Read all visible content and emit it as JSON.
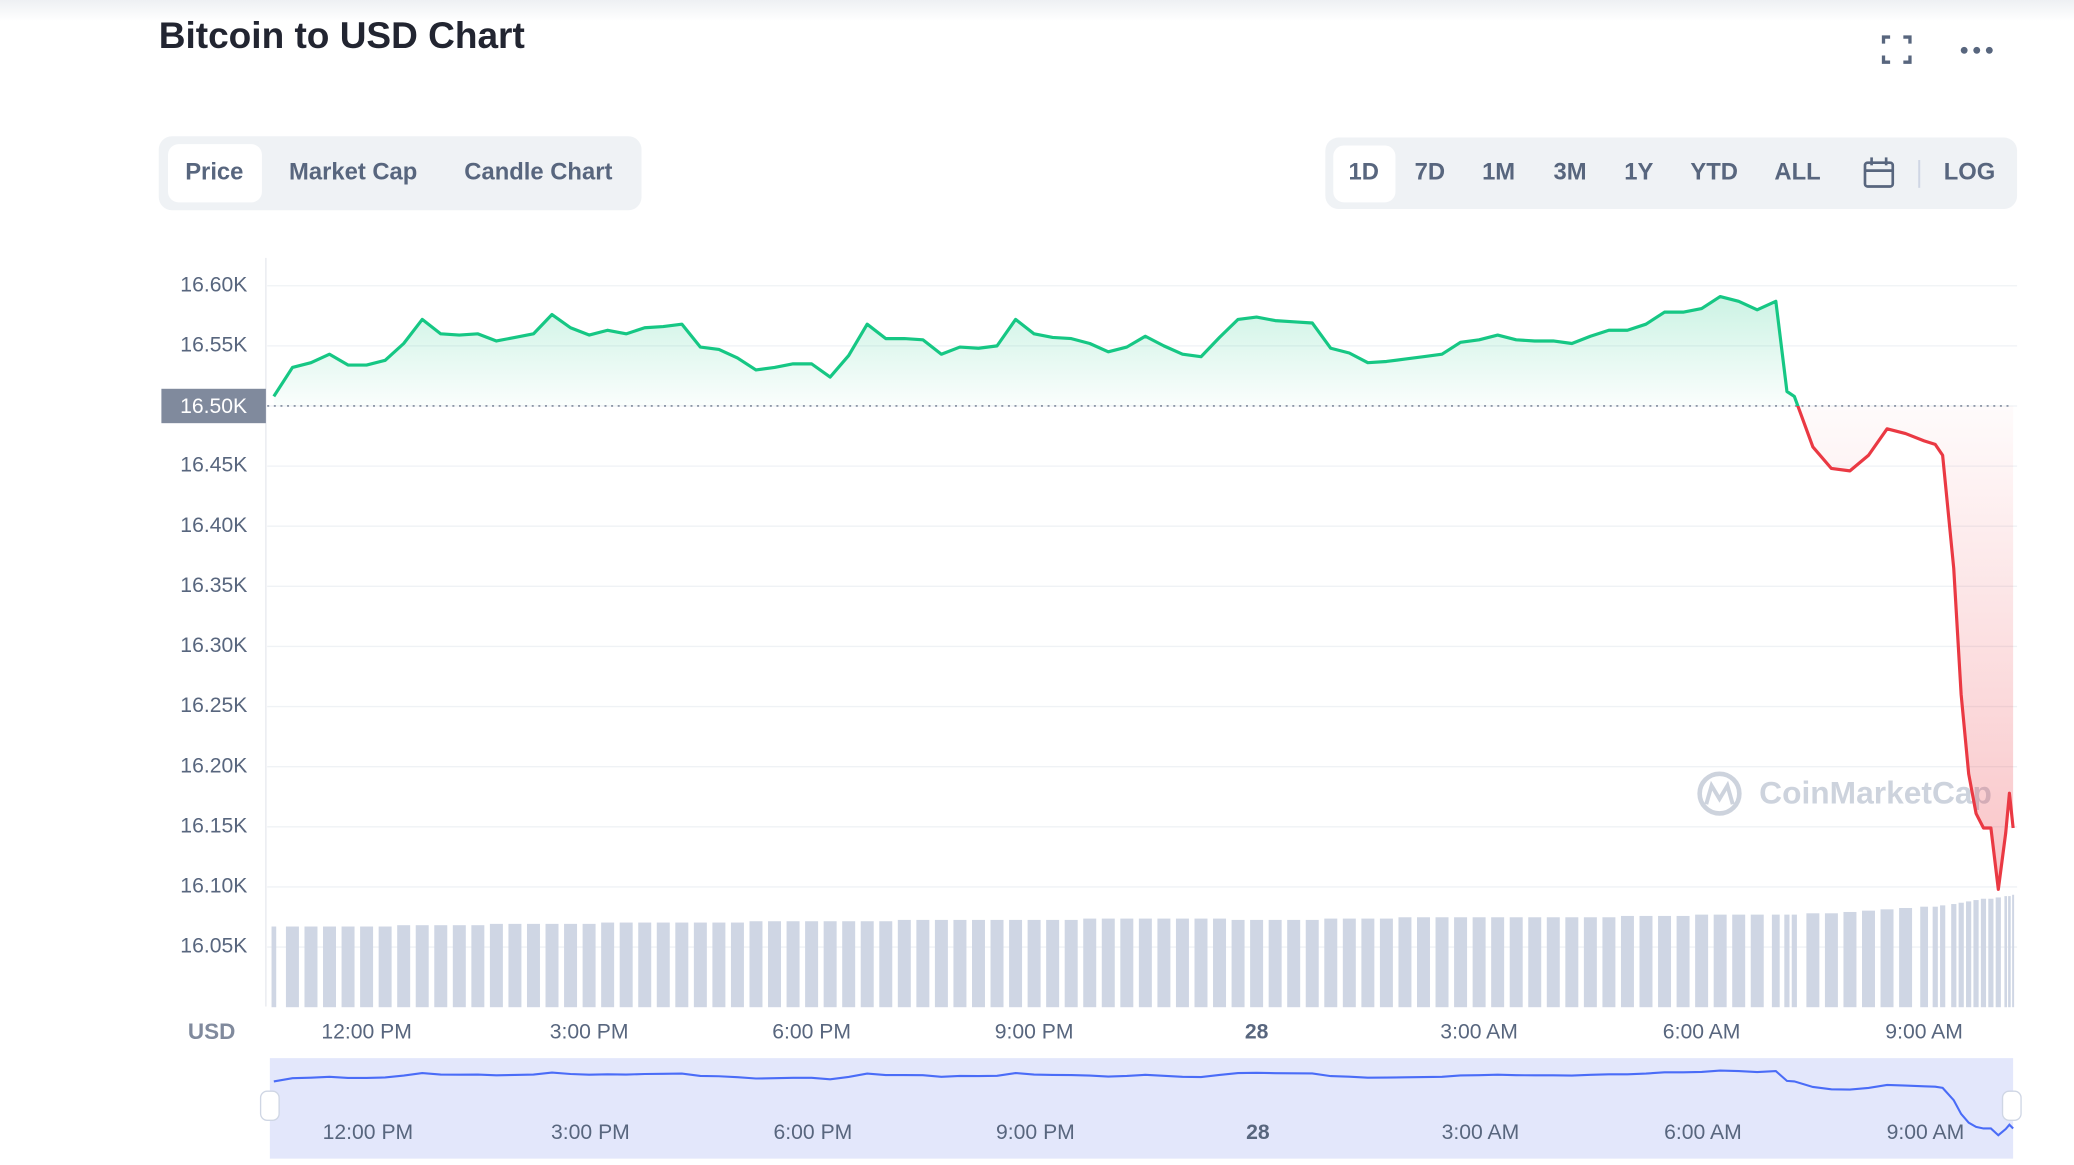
{
  "chart_data": {
    "type": "line",
    "title": "Bitcoin to USD Chart",
    "y_label": "USD",
    "tabs": [
      "Price",
      "Market Cap",
      "Candle Chart"
    ],
    "ranges": [
      "1D",
      "7D",
      "1M",
      "3M",
      "1Y",
      "YTD",
      "ALL"
    ],
    "log_button": "LOG",
    "watermark": "CoinMarketCap",
    "log_scale": false,
    "grid": true,
    "up_color": "#16c784",
    "down_color": "#ea3943",
    "volume_color": "#cfd6e4",
    "navigator_color": "#4a6cf7",
    "reference": {
      "value": 16500,
      "label": "16.50K"
    },
    "x": [
      10.75,
      11,
      11.25,
      11.5,
      11.75,
      12,
      12.25,
      12.5,
      12.75,
      13,
      13.25,
      13.5,
      13.75,
      14,
      14.25,
      14.5,
      14.75,
      15,
      15.25,
      15.5,
      15.75,
      16,
      16.25,
      16.5,
      16.75,
      17,
      17.25,
      17.5,
      17.75,
      18,
      18.25,
      18.5,
      18.75,
      19,
      19.25,
      19.5,
      19.75,
      20,
      20.25,
      20.5,
      20.75,
      21,
      21.25,
      21.5,
      21.75,
      22,
      22.25,
      22.5,
      22.75,
      23,
      23.25,
      23.5,
      23.75,
      24,
      24.25,
      24.5,
      24.75,
      25,
      25.25,
      25.5,
      25.75,
      26,
      26.25,
      26.5,
      26.75,
      27,
      27.25,
      27.5,
      27.75,
      28,
      28.25,
      28.5,
      28.75,
      29,
      29.25,
      29.5,
      29.75,
      30,
      30.25,
      30.5,
      30.75,
      31,
      31.15,
      31.25,
      31.5,
      31.75,
      32,
      32.25,
      32.5,
      32.75,
      33,
      33.15,
      33.25,
      33.4,
      33.5,
      33.6,
      33.7,
      33.8,
      33.9,
      34,
      34.1,
      34.15,
      34.2
    ],
    "values": [
      16508,
      16532,
      16536,
      16543,
      16534,
      16534,
      16538,
      16552,
      16572,
      16560,
      16559,
      16560,
      16554,
      16557,
      16560,
      16576,
      16565,
      16559,
      16563,
      16560,
      16565,
      16566,
      16568,
      16549,
      16547,
      16540,
      16530,
      16532,
      16535,
      16535,
      16524,
      16542,
      16568,
      16556,
      16556,
      16555,
      16543,
      16549,
      16548,
      16550,
      16572,
      16560,
      16557,
      16556,
      16552,
      16545,
      16549,
      16558,
      16550,
      16543,
      16541,
      16557,
      16572,
      16574,
      16571,
      16570,
      16569,
      16548,
      16544,
      16536,
      16537,
      16539,
      16541,
      16543,
      16553,
      16555,
      16559,
      16555,
      16554,
      16554,
      16552,
      16558,
      16563,
      16563,
      16568,
      16578,
      16578,
      16581,
      16591,
      16587,
      16580,
      16587,
      16512,
      16508,
      16466,
      16448,
      16446,
      16459,
      16481,
      16477,
      16471,
      16468,
      16459,
      16365,
      16260,
      16194,
      16161,
      16149,
      16149,
      16098,
      16145,
      16178,
      16149
    ],
    "volume": [
      61,
      61,
      61,
      61,
      61,
      61,
      61,
      62,
      62,
      62,
      62,
      62,
      63,
      63,
      63,
      63,
      63,
      63,
      64,
      64,
      64,
      64,
      64,
      64,
      64,
      64,
      65,
      65,
      65,
      65,
      65,
      65,
      65,
      65,
      66,
      66,
      66,
      66,
      66,
      66,
      66,
      66,
      66,
      66,
      67,
      67,
      67,
      67,
      67,
      67,
      67,
      67,
      66,
      66,
      66,
      66,
      66,
      67,
      67,
      67,
      67,
      68,
      68,
      68,
      68,
      68,
      68,
      68,
      68,
      68,
      68,
      68,
      68,
      69,
      69,
      69,
      69,
      70,
      70,
      70,
      70,
      70,
      70,
      70,
      71,
      71,
      72,
      73,
      74,
      75,
      76,
      76,
      77,
      78,
      79,
      80,
      81,
      82,
      82,
      83,
      84,
      84,
      85
    ],
    "xlim": [
      10.66,
      34.2
    ],
    "xticks": [
      {
        "value": 12,
        "label": "12:00 PM"
      },
      {
        "value": 15,
        "label": "3:00 PM"
      },
      {
        "value": 18,
        "label": "6:00 PM"
      },
      {
        "value": 21,
        "label": "9:00 PM"
      },
      {
        "value": 24,
        "label": "28"
      },
      {
        "value": 27,
        "label": "3:00 AM"
      },
      {
        "value": 30,
        "label": "6:00 AM"
      },
      {
        "value": 33,
        "label": "9:00 AM"
      }
    ],
    "ylim": [
      16000,
      16625
    ],
    "yticks": [
      {
        "value": 16600,
        "label": "16.60K"
      },
      {
        "value": 16550,
        "label": "16.55K"
      },
      {
        "value": 16500,
        "label": "16.50K"
      },
      {
        "value": 16450,
        "label": "16.45K"
      },
      {
        "value": 16400,
        "label": "16.40K"
      },
      {
        "value": 16350,
        "label": "16.35K"
      },
      {
        "value": 16300,
        "label": "16.30K"
      },
      {
        "value": 16250,
        "label": "16.25K"
      },
      {
        "value": 16200,
        "label": "16.20K"
      },
      {
        "value": 16150,
        "label": "16.15K"
      },
      {
        "value": 16100,
        "label": "16.10K"
      },
      {
        "value": 16050,
        "label": "16.05K"
      }
    ]
  }
}
